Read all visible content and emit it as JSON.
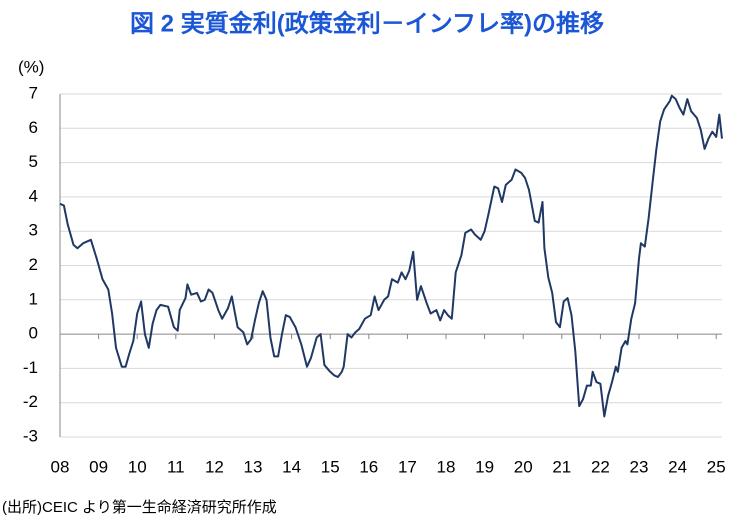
{
  "chart_data": {
    "type": "line",
    "title": "図 2 実質金利(政策金利－インフレ率)の推移",
    "ylabel": "(%)",
    "source": "(出所)CEIC より第一生命経済研究所作成",
    "x": [
      2008.0,
      2008.1,
      2008.2,
      2008.35,
      2008.45,
      2008.6,
      2008.8,
      2008.95,
      2009.1,
      2009.25,
      2009.35,
      2009.45,
      2009.6,
      2009.7,
      2009.8,
      2009.9,
      2010.0,
      2010.1,
      2010.2,
      2010.3,
      2010.4,
      2010.5,
      2010.6,
      2010.8,
      2010.95,
      2011.05,
      2011.1,
      2011.25,
      2011.3,
      2011.4,
      2011.55,
      2011.65,
      2011.75,
      2011.85,
      2011.95,
      2012.1,
      2012.2,
      2012.35,
      2012.45,
      2012.6,
      2012.75,
      2012.85,
      2012.95,
      2013.05,
      2013.15,
      2013.25,
      2013.35,
      2013.45,
      2013.55,
      2013.65,
      2013.75,
      2013.85,
      2013.95,
      2014.1,
      2014.25,
      2014.4,
      2014.5,
      2014.65,
      2014.75,
      2014.85,
      2015.0,
      2015.1,
      2015.2,
      2015.3,
      2015.35,
      2015.45,
      2015.55,
      2015.65,
      2015.75,
      2015.9,
      2016.05,
      2016.15,
      2016.25,
      2016.4,
      2016.5,
      2016.6,
      2016.75,
      2016.85,
      2016.95,
      2017.05,
      2017.15,
      2017.25,
      2017.35,
      2017.5,
      2017.6,
      2017.75,
      2017.85,
      2017.95,
      2018.05,
      2018.15,
      2018.25,
      2018.4,
      2018.5,
      2018.65,
      2018.75,
      2018.9,
      2019.0,
      2019.1,
      2019.25,
      2019.35,
      2019.45,
      2019.55,
      2019.7,
      2019.8,
      2019.95,
      2020.05,
      2020.15,
      2020.3,
      2020.4,
      2020.5,
      2020.55,
      2020.65,
      2020.75,
      2020.85,
      2020.95,
      2021.05,
      2021.15,
      2021.25,
      2021.35,
      2021.45,
      2021.55,
      2021.65,
      2021.75,
      2021.8,
      2021.9,
      2022.0,
      2022.1,
      2022.2,
      2022.3,
      2022.4,
      2022.45,
      2022.55,
      2022.65,
      2022.7,
      2022.8,
      2022.9,
      2023.0,
      2023.05,
      2023.15,
      2023.25,
      2023.35,
      2023.45,
      2023.55,
      2023.65,
      2023.8,
      2023.85,
      2023.95,
      2024.05,
      2024.15,
      2024.25,
      2024.35,
      2024.5,
      2024.6,
      2024.7,
      2024.8,
      2024.9,
      2025.0,
      2025.08,
      2025.15
    ],
    "series": [
      {
        "color": "#1f3864",
        "values": [
          3.8,
          3.75,
          3.2,
          2.6,
          2.5,
          2.65,
          2.75,
          2.2,
          1.6,
          1.3,
          0.6,
          -0.4,
          -0.95,
          -0.95,
          -0.55,
          -0.2,
          0.6,
          0.95,
          0,
          -0.4,
          0.3,
          0.7,
          0.85,
          0.8,
          0.2,
          0.1,
          0.7,
          1.05,
          1.45,
          1.15,
          1.2,
          0.95,
          1.0,
          1.3,
          1.2,
          0.7,
          0.45,
          0.75,
          1.1,
          0.2,
          0.05,
          -0.3,
          -0.15,
          0.4,
          0.9,
          1.25,
          1.0,
          -0.1,
          -0.65,
          -0.65,
          0,
          0.55,
          0.5,
          0.2,
          -0.3,
          -0.95,
          -0.7,
          -0.1,
          0,
          -0.9,
          -1.1,
          -1.2,
          -1.25,
          -1.1,
          -0.95,
          0,
          -0.1,
          0.05,
          0.15,
          0.45,
          0.55,
          1.1,
          0.7,
          1.0,
          1.1,
          1.6,
          1.5,
          1.8,
          1.6,
          1.85,
          2.4,
          1.0,
          1.4,
          0.9,
          0.6,
          0.7,
          0.4,
          0.7,
          0.55,
          0.45,
          1.8,
          2.3,
          2.95,
          3.05,
          2.9,
          2.75,
          3.0,
          3.5,
          4.3,
          4.25,
          3.85,
          4.35,
          4.5,
          4.8,
          4.7,
          4.55,
          4.2,
          3.3,
          3.25,
          3.85,
          2.5,
          1.65,
          1.2,
          0.35,
          0.2,
          0.95,
          1.05,
          0.55,
          -0.5,
          -2.1,
          -1.9,
          -1.5,
          -1.5,
          -1.1,
          -1.4,
          -1.45,
          -2.4,
          -1.8,
          -1.4,
          -0.95,
          -1.1,
          -0.4,
          -0.2,
          -0.3,
          0.45,
          0.9,
          2.2,
          2.65,
          2.55,
          3.4,
          4.4,
          5.4,
          6.2,
          6.55,
          6.8,
          6.95,
          6.85,
          6.6,
          6.4,
          6.85,
          6.5,
          6.3,
          5.95,
          5.4,
          5.7,
          5.9,
          5.75,
          6.4,
          5.7
        ]
      }
    ],
    "xlim": [
      2008,
      2025.15
    ],
    "xticks": [
      {
        "value": 2008,
        "label": "08"
      },
      {
        "value": 2009,
        "label": "09"
      },
      {
        "value": 2010,
        "label": "10"
      },
      {
        "value": 2011,
        "label": "11"
      },
      {
        "value": 2012,
        "label": "12"
      },
      {
        "value": 2013,
        "label": "13"
      },
      {
        "value": 2014,
        "label": "14"
      },
      {
        "value": 2015,
        "label": "15"
      },
      {
        "value": 2016,
        "label": "16"
      },
      {
        "value": 2017,
        "label": "17"
      },
      {
        "value": 2018,
        "label": "18"
      },
      {
        "value": 2019,
        "label": "19"
      },
      {
        "value": 2020,
        "label": "20"
      },
      {
        "value": 2021,
        "label": "21"
      },
      {
        "value": 2022,
        "label": "22"
      },
      {
        "value": 2023,
        "label": "23"
      },
      {
        "value": 2024,
        "label": "24"
      },
      {
        "value": 2025,
        "label": "25"
      }
    ],
    "ylim": [
      -3,
      7
    ],
    "yticks": [
      -3,
      -2,
      -1,
      0,
      1,
      2,
      3,
      4,
      5,
      6,
      7
    ],
    "grid": true,
    "negative_tick_color": "#ff0000"
  }
}
